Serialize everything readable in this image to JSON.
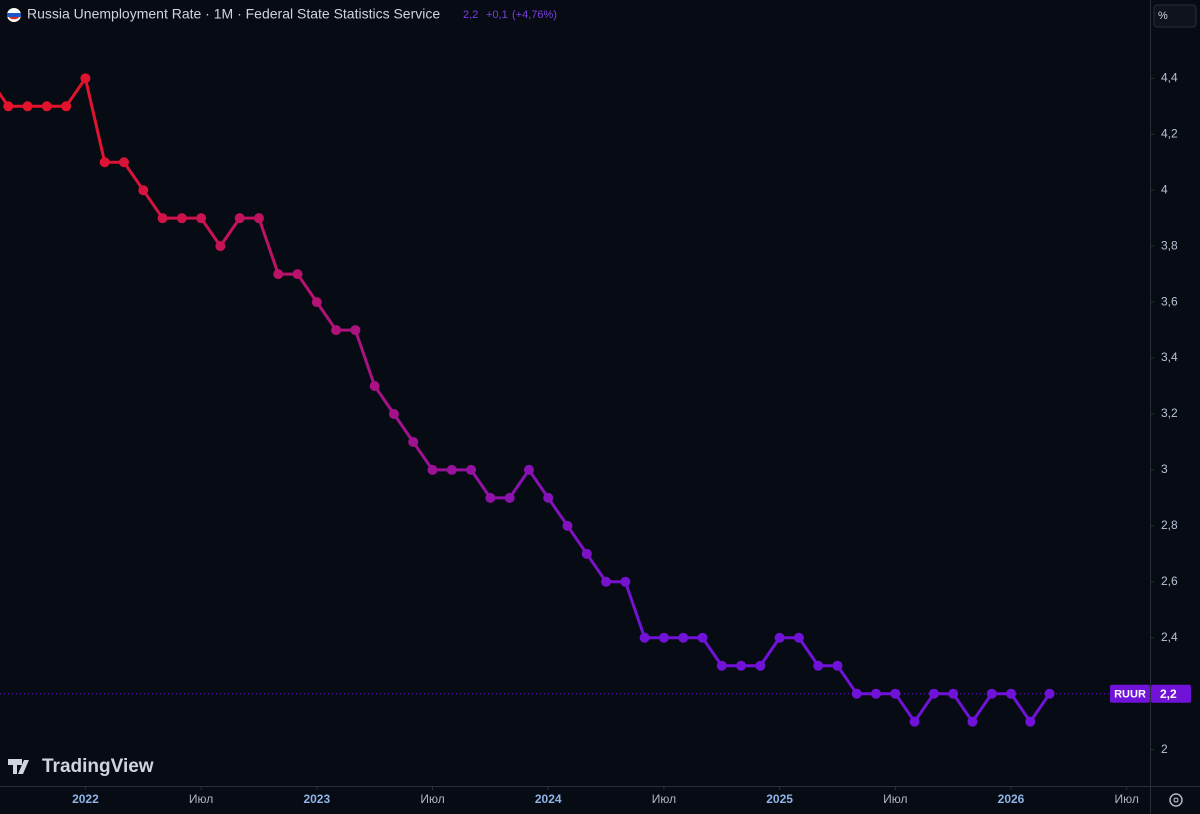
{
  "chart_data": {
    "type": "line",
    "title": "Russia Unemployment Rate · 1M · Federal State Statistics Service",
    "last_label": "2,2",
    "change_label": "+0,1",
    "change_pct_label": "(+4,76%)",
    "symbol": "RUUR",
    "unit": "%",
    "watermark": "TradingView",
    "gradient": [
      "#e3132c",
      "#7012d8"
    ],
    "x": [
      "2021-08",
      "2021-09",
      "2021-10",
      "2021-11",
      "2021-12",
      "2022-01",
      "2022-02",
      "2022-03",
      "2022-04",
      "2022-05",
      "2022-06",
      "2022-07",
      "2022-08",
      "2022-09",
      "2022-10",
      "2022-11",
      "2022-12",
      "2023-01",
      "2023-02",
      "2023-03",
      "2023-04",
      "2023-05",
      "2023-06",
      "2023-07",
      "2023-08",
      "2023-09",
      "2023-10",
      "2023-11",
      "2023-12",
      "2024-01",
      "2024-02",
      "2024-03",
      "2024-04",
      "2024-05",
      "2024-06",
      "2024-07",
      "2024-08",
      "2024-09",
      "2024-10",
      "2024-11",
      "2024-12",
      "2025-01",
      "2025-02",
      "2025-03",
      "2025-04",
      "2025-05",
      "2025-06",
      "2025-07",
      "2025-08",
      "2025-09",
      "2025-10",
      "2025-11",
      "2025-12",
      "2026-01",
      "2026-02",
      "2026-03"
    ],
    "values": [
      4.4,
      4.3,
      4.3,
      4.3,
      4.3,
      4.4,
      4.1,
      4.1,
      4.0,
      3.9,
      3.9,
      3.9,
      3.8,
      3.9,
      3.9,
      3.7,
      3.7,
      3.6,
      3.5,
      3.5,
      3.3,
      3.2,
      3.1,
      3.0,
      3.0,
      3.0,
      2.9,
      2.9,
      3.0,
      2.9,
      2.8,
      2.7,
      2.6,
      2.6,
      2.4,
      2.4,
      2.4,
      2.4,
      2.3,
      2.3,
      2.3,
      2.4,
      2.4,
      2.3,
      2.3,
      2.2,
      2.2,
      2.2,
      2.1,
      2.2,
      2.2,
      2.1,
      2.2,
      2.2,
      2.1,
      2.2
    ],
    "xlim": [
      "2021-08",
      "2026-08"
    ],
    "xticks": [
      {
        "value": "2022-01",
        "label": "2022"
      },
      {
        "value": "2022-07",
        "label": "Июл"
      },
      {
        "value": "2023-01",
        "label": "2023"
      },
      {
        "value": "2023-07",
        "label": "Июл"
      },
      {
        "value": "2024-01",
        "label": "2024"
      },
      {
        "value": "2024-07",
        "label": "Июл"
      },
      {
        "value": "2025-01",
        "label": "2025"
      },
      {
        "value": "2025-07",
        "label": "Июл"
      },
      {
        "value": "2026-01",
        "label": "2026"
      },
      {
        "value": "2026-07",
        "label": "Июл"
      }
    ],
    "ylim": [
      1.87,
      4.68
    ],
    "yticks": [
      2,
      {
        "value": 2.2,
        "label": "2,2"
      },
      {
        "value": 2.4,
        "label": "2,4"
      },
      {
        "value": 2.6,
        "label": "2,6"
      },
      {
        "value": 2.8,
        "label": "2,8"
      },
      3,
      {
        "value": 3.2,
        "label": "3,2"
      },
      {
        "value": 3.4,
        "label": "3,4"
      },
      {
        "value": 3.6,
        "label": "3,6"
      },
      {
        "value": 3.8,
        "label": "3,8"
      },
      4,
      {
        "value": 4.2,
        "label": "4,2"
      },
      {
        "value": 4.4,
        "label": "4,4"
      }
    ]
  }
}
